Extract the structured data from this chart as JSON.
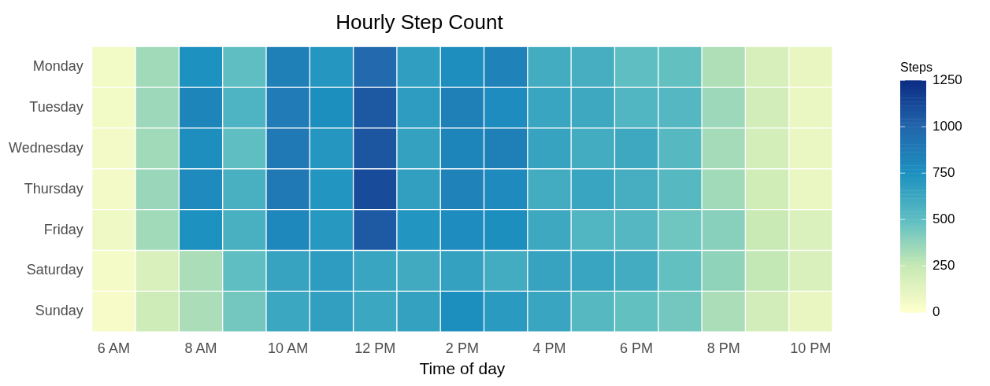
{
  "chart_data": {
    "type": "heatmap",
    "title": "Hourly Step Count",
    "xlabel": "Time of day",
    "clabel": "Steps",
    "categories": [
      "6 AM",
      null,
      "8 AM",
      null,
      "10 AM",
      null,
      "12 PM",
      null,
      "2 PM",
      null,
      "4 PM",
      null,
      "6 PM",
      null,
      "8 PM",
      null,
      "10 PM"
    ],
    "y_categories": [
      "Monday",
      "Tuesday",
      "Wednesday",
      "Thursday",
      "Friday",
      "Saturday",
      "Sunday"
    ],
    "cells": [
      [
        60,
        340,
        750,
        500,
        850,
        720,
        980,
        680,
        770,
        830,
        600,
        590,
        500,
        490,
        310,
        180,
        100
      ],
      [
        60,
        350,
        820,
        560,
        880,
        760,
        1060,
        690,
        850,
        780,
        640,
        620,
        550,
        540,
        350,
        200,
        90
      ],
      [
        55,
        340,
        770,
        500,
        890,
        720,
        1070,
        660,
        820,
        850,
        650,
        600,
        620,
        530,
        330,
        190,
        90
      ],
      [
        55,
        360,
        790,
        580,
        890,
        730,
        1110,
        670,
        830,
        790,
        600,
        640,
        590,
        530,
        340,
        210,
        90
      ],
      [
        70,
        340,
        750,
        580,
        810,
        710,
        1050,
        730,
        780,
        760,
        620,
        550,
        540,
        460,
        400,
        240,
        160
      ],
      [
        50,
        170,
        320,
        500,
        650,
        690,
        640,
        610,
        660,
        600,
        650,
        640,
        600,
        490,
        380,
        260,
        170
      ],
      [
        40,
        220,
        320,
        450,
        630,
        670,
        630,
        660,
        760,
        700,
        640,
        530,
        490,
        450,
        320,
        200,
        100
      ]
    ],
    "clim": [
      0,
      1250
    ],
    "cticks": [
      0,
      250,
      500,
      750,
      1000,
      1250
    ]
  }
}
